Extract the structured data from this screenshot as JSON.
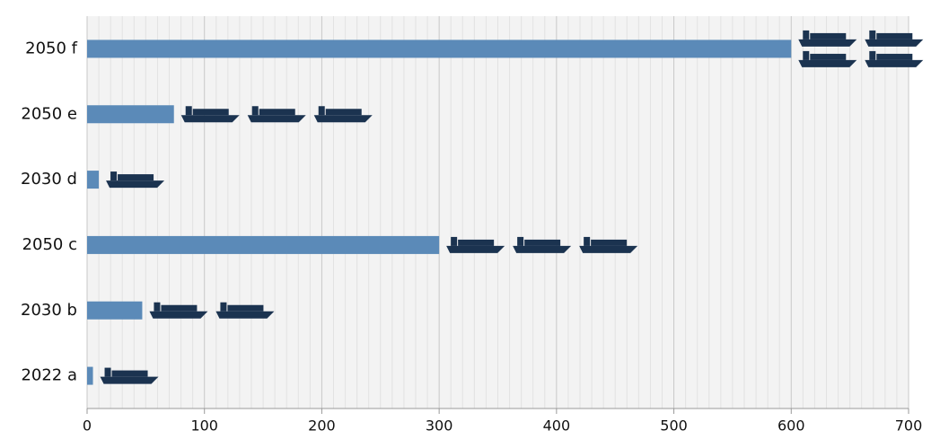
{
  "chart_data": {
    "type": "bar",
    "orientation": "horizontal",
    "categories": [
      "2050 f",
      "2050 e",
      "2030 d",
      "2050 c",
      "2030 b",
      "2022 a"
    ],
    "values": [
      600,
      74,
      10,
      300,
      47,
      5
    ],
    "icon_counts": [
      4,
      3,
      1,
      3,
      2,
      1
    ],
    "color": "#5b8ab8",
    "icon_color": "#1b3350",
    "xlim": [
      0,
      700
    ],
    "xticks": [
      0,
      100,
      200,
      300,
      400,
      500,
      600,
      700
    ],
    "grid": true
  }
}
